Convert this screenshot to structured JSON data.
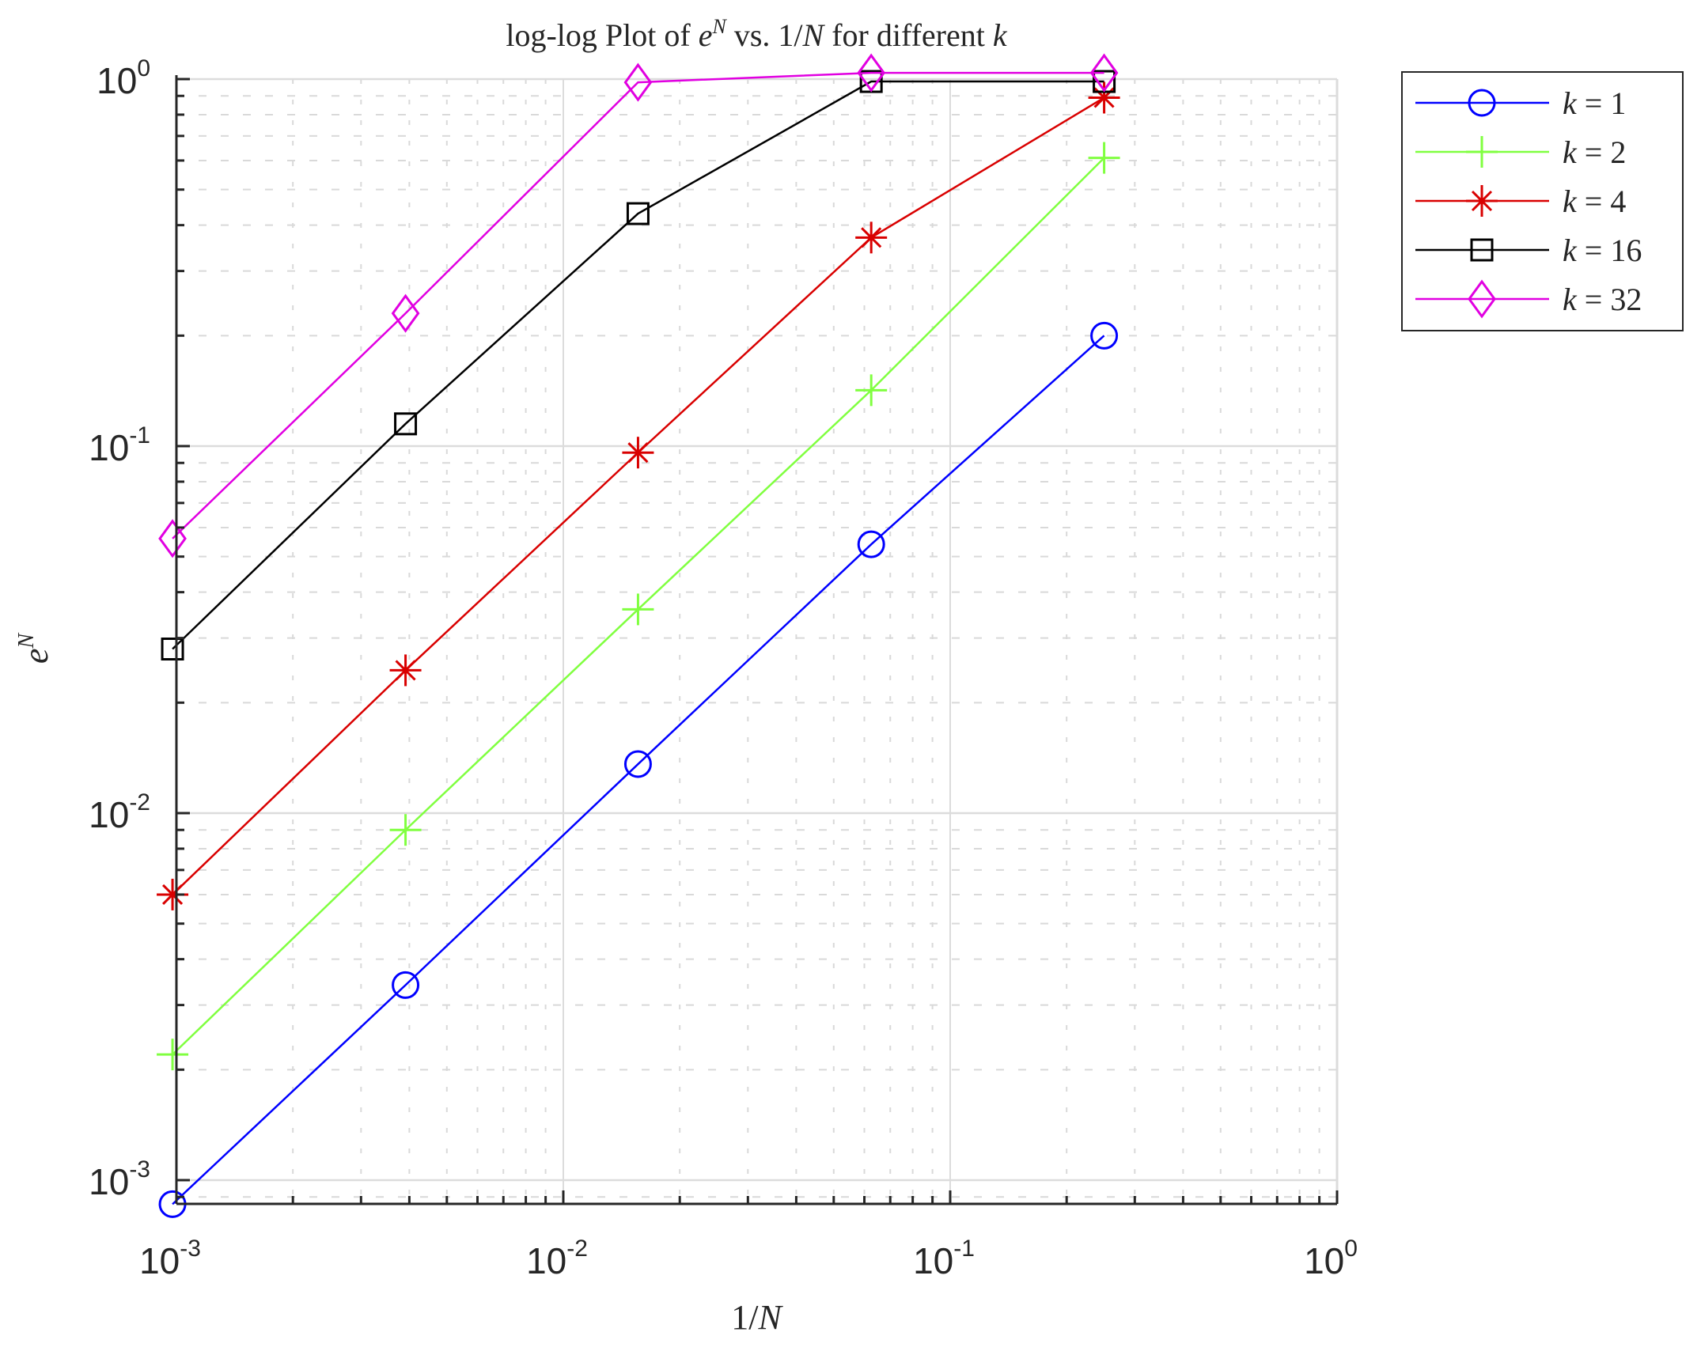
{
  "chart_data": {
    "type": "line",
    "title": "log-log Plot of e^N vs. 1/N for different k",
    "title_parts": {
      "pre": "log-log Plot of ",
      "base": "e",
      "sup": "N",
      "mid": " vs. ",
      "frac": "1/",
      "fracvar": "N",
      "post": " for different ",
      "kvar": "k"
    },
    "xlabel": "1/N",
    "ylabel": "e^N",
    "xscale": "log",
    "yscale": "log",
    "xlim": [
      0.001,
      1
    ],
    "ylim": [
      0.00086,
      1.0
    ],
    "grid": true,
    "minor_grid": true,
    "legend_position": "outside-right-top",
    "x_tick_labels": [
      {
        "base": "10",
        "exp": "-3",
        "value": 0.001
      },
      {
        "base": "10",
        "exp": "-2",
        "value": 0.01
      },
      {
        "base": "10",
        "exp": "-1",
        "value": 0.1
      },
      {
        "base": "10",
        "exp": "0",
        "value": 1
      }
    ],
    "y_tick_labels": [
      {
        "base": "10",
        "exp": "0",
        "value": 1
      },
      {
        "base": "10",
        "exp": "-1",
        "value": 0.1
      },
      {
        "base": "10",
        "exp": "-2",
        "value": 0.01
      },
      {
        "base": "10",
        "exp": "-3",
        "value": 0.001
      }
    ],
    "x": [
      0.000977,
      0.00391,
      0.0156,
      0.0625,
      0.25
    ],
    "series": [
      {
        "name": "k = 1",
        "kval": "1",
        "color": "#0000ff",
        "marker": "circle",
        "values": [
          0.00086,
          0.0034,
          0.0136,
          0.054,
          0.2
        ]
      },
      {
        "name": "k = 2",
        "kval": "2",
        "color": "#80ff40",
        "marker": "plus",
        "values": [
          0.0022,
          0.009,
          0.0359,
          0.142,
          0.61
        ]
      },
      {
        "name": "k = 4",
        "kval": "4",
        "color": "#d90000",
        "marker": "asterisk",
        "values": [
          0.006,
          0.0245,
          0.096,
          0.37,
          0.89
        ]
      },
      {
        "name": "k = 16",
        "kval": "16",
        "color": "#000000",
        "marker": "square",
        "values": [
          0.028,
          0.115,
          0.43,
          0.985,
          0.985
        ]
      },
      {
        "name": "k = 32",
        "kval": "32",
        "color": "#e100e1",
        "marker": "diamond",
        "values": [
          0.056,
          0.23,
          0.98,
          1.04,
          1.04
        ]
      }
    ]
  }
}
